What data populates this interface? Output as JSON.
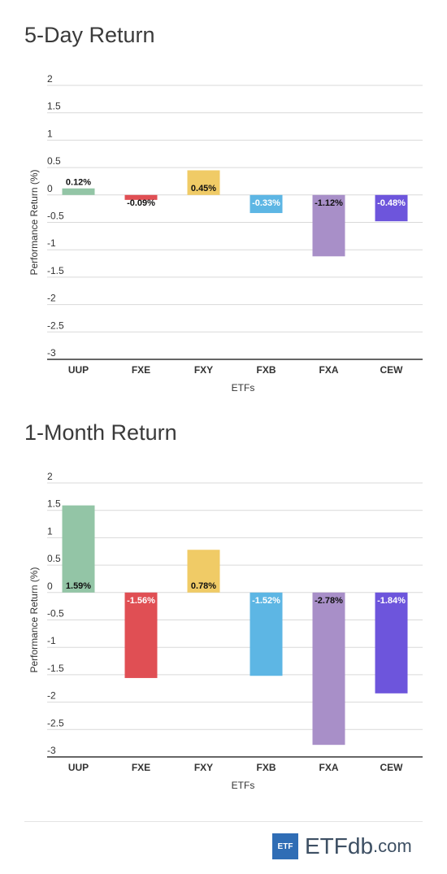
{
  "chart_data": [
    {
      "type": "bar",
      "title": "5-Day Return",
      "xlabel": "ETFs",
      "ylabel": "Performance Return (%)",
      "ylim": [
        -3,
        2
      ],
      "yticks": [
        "2",
        "1.5",
        "1",
        "0.5",
        "0",
        "-0.5",
        "-1",
        "-1.5",
        "-2",
        "-2.5",
        "-3"
      ],
      "categories": [
        "UUP",
        "FXE",
        "FXY",
        "FXB",
        "FXA",
        "CEW"
      ],
      "values": [
        0.12,
        -0.09,
        0.45,
        -0.33,
        -1.12,
        -0.48
      ],
      "labels": [
        "0.12%",
        "-0.09%",
        "0.45%",
        "-0.33%",
        "-1.12%",
        "-0.48%"
      ],
      "grid": true,
      "legend": "none"
    },
    {
      "type": "bar",
      "title": "1-Month Return",
      "xlabel": "ETFs",
      "ylabel": "Performance Return (%)",
      "ylim": [
        -3,
        2
      ],
      "yticks": [
        "2",
        "1.5",
        "1",
        "0.5",
        "0",
        "-0.5",
        "-1",
        "-1.5",
        "-2",
        "-2.5",
        "-3"
      ],
      "categories": [
        "UUP",
        "FXE",
        "FXY",
        "FXB",
        "FXA",
        "CEW"
      ],
      "values": [
        1.59,
        -1.56,
        0.78,
        -1.52,
        -2.78,
        -1.84
      ],
      "labels": [
        "1.59%",
        "-1.56%",
        "0.78%",
        "-1.52%",
        "-2.78%",
        "-1.84%"
      ],
      "grid": true,
      "legend": "none"
    }
  ],
  "colors": {
    "UUP": "#93c5a6",
    "FXE": "#e04f54",
    "FXY": "#f0cb66",
    "FXB": "#5db6e4",
    "FXA": "#a88fc8",
    "CEW": "#6d55dc",
    "grid": "#d9d9d9",
    "axis": "#333333"
  },
  "logo": {
    "box": "ETF",
    "word": "ETFdb",
    "suffix": ".com"
  }
}
